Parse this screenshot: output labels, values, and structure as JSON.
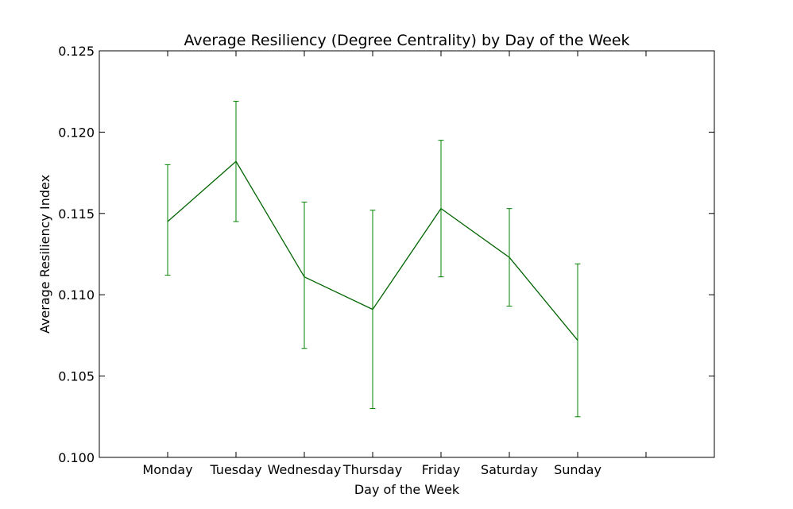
{
  "chart_data": {
    "type": "line",
    "title": "Average Resiliency (Degree Centrality) by Day of the Week",
    "xlabel": "Day of the Week",
    "ylabel": "Average Resiliency Index",
    "categories": [
      "Monday",
      "Tuesday",
      "Wednesday",
      "Thursday",
      "Friday",
      "Saturday",
      "Sunday"
    ],
    "series": [
      {
        "values": [
          0.1145,
          0.1182,
          0.1111,
          0.1091,
          0.1153,
          0.1123,
          0.1072
        ],
        "error_lower": [
          0.1112,
          0.1145,
          0.1067,
          0.103,
          0.1111,
          0.1093,
          0.1025
        ],
        "error_upper": [
          0.118,
          0.1219,
          0.1157,
          0.1152,
          0.1195,
          0.1153,
          0.1119
        ],
        "line_color": "#006400",
        "errorbar_color": "#008000"
      }
    ],
    "xlim": [
      0,
      9
    ],
    "ylim": [
      0.1,
      0.125
    ],
    "yticks": [
      "0.100",
      "0.105",
      "0.110",
      "0.115",
      "0.120",
      "0.125"
    ],
    "grid": false,
    "legend": "none"
  }
}
